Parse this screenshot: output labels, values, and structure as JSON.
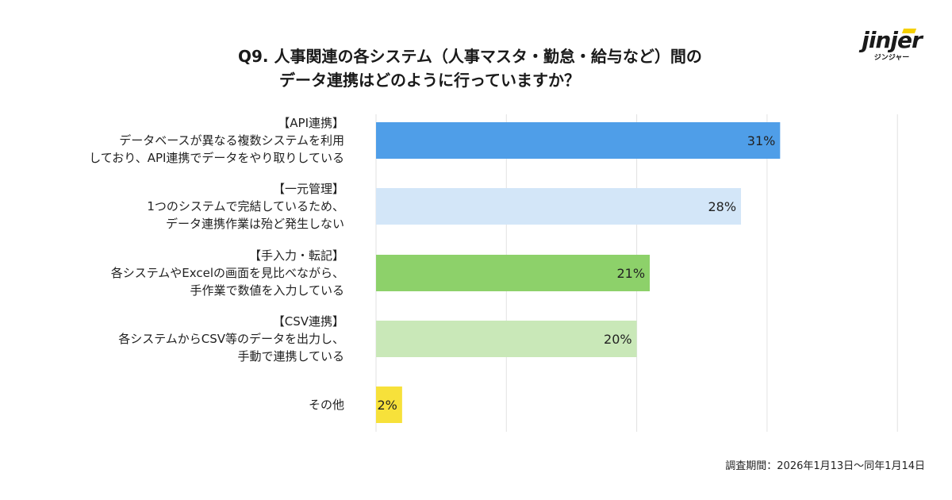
{
  "header": {
    "title_line1": "Q9.  人事関連の各システム（人事マスタ・勤怠・給与など）間の",
    "title_line2": "データ連携はどのように行っていますか？"
  },
  "logo": {
    "mark": "jinjer",
    "kana": "ジンジャー",
    "accent_color": "#f5d000"
  },
  "chart_data": {
    "type": "bar",
    "orientation": "horizontal",
    "categories": [
      [
        "【API連携】",
        "データベースが異なる複数システムを利用",
        "しており、API連携でデータをやり取りしている"
      ],
      [
        "【一元管理】",
        "1つのシステムで完結しているため、",
        "データ連携作業は殆ど発生しない"
      ],
      [
        "【手入力・転記】",
        "各システムやExcelの画面を見比べながら、",
        "手作業で数値を入力している"
      ],
      [
        "【CSV連携】",
        "各システムからCSV等のデータを出力し、",
        "手動で連携している"
      ],
      [
        "その他"
      ]
    ],
    "values": [
      31,
      28,
      21,
      20,
      2
    ],
    "data_labels": [
      "31%",
      "28%",
      "21%",
      "20%",
      "2%"
    ],
    "colors": [
      "#4f9ee8",
      "#d3e6f8",
      "#8dd16a",
      "#c9e8b8",
      "#f7e13a"
    ],
    "xlim": [
      0,
      40
    ],
    "grid": true
  },
  "footer": {
    "survey_period": "調査期間：2026年1月13日〜同年1月14日"
  }
}
